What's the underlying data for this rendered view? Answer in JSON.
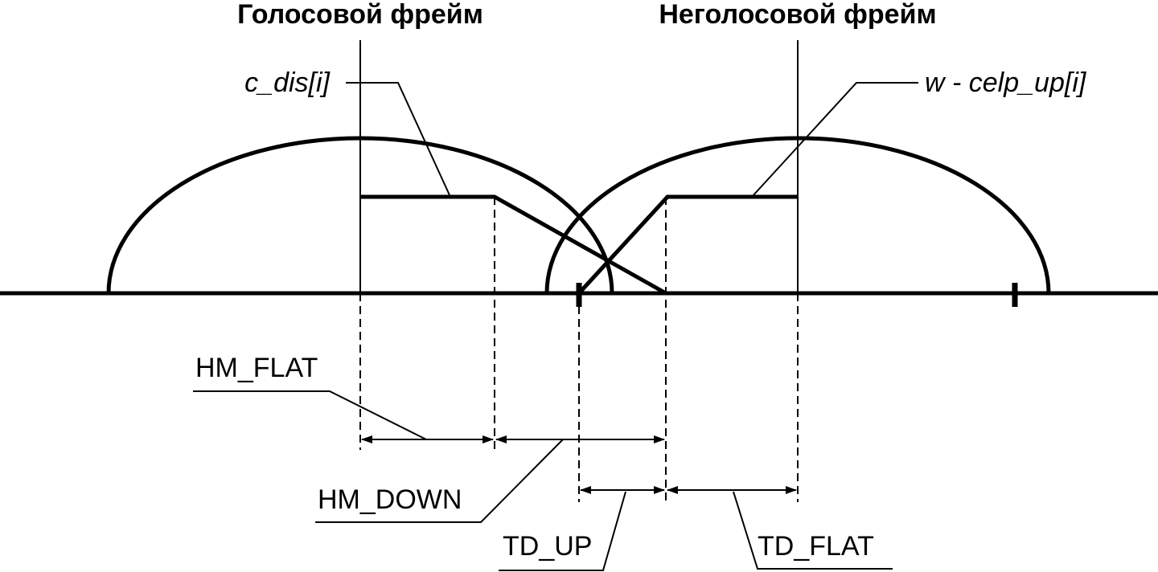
{
  "titles": {
    "voiced": "Голосовой фрейм",
    "unvoiced": "Неголосовой фрейм"
  },
  "curves": {
    "c_dis": "c_dis[i]",
    "w_celp_up": "w - celp_up[i]"
  },
  "intervals": {
    "hm_flat": "HM_FLAT",
    "hm_down": "HM_DOWN",
    "td_up": "TD_UP",
    "td_flat": "TD_FLAT"
  }
}
